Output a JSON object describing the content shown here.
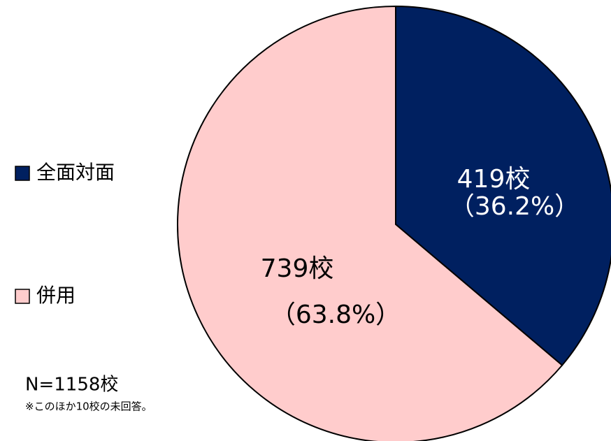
{
  "chart_data": {
    "type": "pie",
    "categories": [
      "全面対面",
      "併用"
    ],
    "values": [
      419,
      739
    ],
    "value_labels": [
      "419校",
      "739校"
    ],
    "percent_labels": [
      "（36.2%）",
      "（63.8%）"
    ],
    "colors": [
      "#002060",
      "#ffcccc"
    ],
    "label_colors": [
      "#ffffff",
      "#000000"
    ],
    "legend": "left",
    "total_label": "N=1158校",
    "note": "※このほか10校の未回答。"
  }
}
